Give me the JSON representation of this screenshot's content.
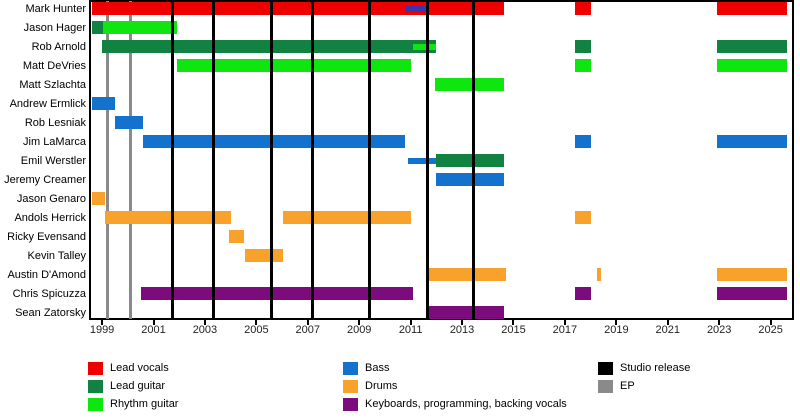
{
  "colors": {
    "lead_vocals": "#ee0000",
    "lead_guitar": "#128243",
    "rhythm_guitar": "#0fe50f",
    "bass": "#1272ce",
    "bass_dark_overlay": "#3b33b0",
    "drums": "#f9a22b",
    "keyboards": "#7c0b7c",
    "studio": "#000000",
    "ep": "#8a8a8a"
  },
  "chart_data": {
    "type": "timeline",
    "title": "",
    "x_axis": {
      "start": 1998.53,
      "end": 2025.87,
      "ticks": [
        1999,
        2001,
        2003,
        2005,
        2007,
        2009,
        2011,
        2013,
        2015,
        2017,
        2019,
        2021,
        2023,
        2025
      ]
    },
    "members": [
      {
        "name": "Mark Hunter",
        "segments": [
          {
            "role": "lead_vocals",
            "from": 1998.6,
            "to": 2014.65
          },
          {
            "role": "bass",
            "color_key": "bass_dark_overlay",
            "from": 2010.8,
            "to": 2011.55,
            "thin": true
          },
          {
            "role": "lead_vocals",
            "from": 2017.4,
            "to": 2018.0
          },
          {
            "role": "lead_vocals",
            "from": 2022.9,
            "to": 2025.65
          }
        ]
      },
      {
        "name": "Jason Hager",
        "segments": [
          {
            "role": "lead_guitar",
            "from": 1998.6,
            "to": 1999.05
          },
          {
            "role": "rhythm_guitar",
            "from": 1999.05,
            "to": 2001.9
          }
        ]
      },
      {
        "name": "Rob Arnold",
        "segments": [
          {
            "role": "lead_guitar",
            "from": 1999.0,
            "to": 2012.0
          },
          {
            "role": "rhythm_guitar",
            "from": 2011.1,
            "to": 2012.0,
            "thin": true
          },
          {
            "role": "lead_guitar",
            "from": 2017.4,
            "to": 2018.0
          },
          {
            "role": "lead_guitar",
            "from": 2022.9,
            "to": 2025.65
          }
        ]
      },
      {
        "name": "Matt DeVries",
        "segments": [
          {
            "role": "rhythm_guitar",
            "from": 2001.9,
            "to": 2011.0
          },
          {
            "role": "rhythm_guitar",
            "from": 2017.4,
            "to": 2018.0
          },
          {
            "role": "rhythm_guitar",
            "from": 2022.9,
            "to": 2025.65
          }
        ]
      },
      {
        "name": "Matt Szlachta",
        "segments": [
          {
            "role": "rhythm_guitar",
            "from": 2011.95,
            "to": 2014.65
          }
        ]
      },
      {
        "name": "Andrew Ermlick",
        "segments": [
          {
            "role": "bass",
            "from": 1998.6,
            "to": 1999.5
          }
        ]
      },
      {
        "name": "Rob Lesniak",
        "segments": [
          {
            "role": "bass",
            "from": 1999.5,
            "to": 2000.6
          }
        ]
      },
      {
        "name": "Jim LaMarca",
        "segments": [
          {
            "role": "bass",
            "from": 2000.6,
            "to": 2010.8
          },
          {
            "role": "bass",
            "from": 2017.4,
            "to": 2018.0
          },
          {
            "role": "bass",
            "from": 2022.9,
            "to": 2025.65
          }
        ]
      },
      {
        "name": "Emil Werstler",
        "segments": [
          {
            "role": "bass",
            "from": 2010.9,
            "to": 2012.0,
            "thin": true
          },
          {
            "role": "lead_guitar",
            "from": 2012.0,
            "to": 2014.65
          }
        ]
      },
      {
        "name": "Jeremy Creamer",
        "segments": [
          {
            "role": "bass",
            "from": 2012.0,
            "to": 2014.65
          }
        ]
      },
      {
        "name": "Jason Genaro",
        "segments": [
          {
            "role": "drums",
            "from": 1998.6,
            "to": 1999.1
          }
        ]
      },
      {
        "name": "Andols Herrick",
        "segments": [
          {
            "role": "drums",
            "from": 1999.1,
            "to": 2004.0
          },
          {
            "role": "drums",
            "from": 2006.05,
            "to": 2011.0
          },
          {
            "role": "drums",
            "from": 2017.4,
            "to": 2018.0
          }
        ]
      },
      {
        "name": "Ricky Evensand",
        "segments": [
          {
            "role": "drums",
            "from": 2003.95,
            "to": 2004.5
          }
        ]
      },
      {
        "name": "Kevin Talley",
        "segments": [
          {
            "role": "drums",
            "from": 2004.55,
            "to": 2006.05
          }
        ]
      },
      {
        "name": "Austin D'Amond",
        "segments": [
          {
            "role": "drums",
            "from": 2011.65,
            "to": 2014.7
          },
          {
            "role": "drums",
            "from": 2018.25,
            "to": 2018.4
          },
          {
            "role": "drums",
            "from": 2022.9,
            "to": 2025.65
          }
        ]
      },
      {
        "name": "Chris Spicuzza",
        "segments": [
          {
            "role": "keyboards",
            "from": 2000.5,
            "to": 2011.1
          },
          {
            "role": "keyboards",
            "from": 2017.4,
            "to": 2018.0
          },
          {
            "role": "keyboards",
            "from": 2022.9,
            "to": 2025.65
          }
        ]
      },
      {
        "name": "Sean Zatorsky",
        "segments": [
          {
            "role": "keyboards",
            "from": 2011.65,
            "to": 2014.65
          }
        ]
      }
    ],
    "releases": {
      "studio": [
        2001.75,
        2003.35,
        2005.6,
        2007.2,
        2009.4,
        2011.65,
        2013.45
      ],
      "ep": [
        1999.2,
        2000.1
      ]
    }
  },
  "legend": {
    "columns": [
      {
        "items": [
          {
            "label": "Lead vocals",
            "role": "lead_vocals"
          },
          {
            "label": "Lead guitar",
            "role": "lead_guitar"
          },
          {
            "label": "Rhythm guitar",
            "role": "rhythm_guitar"
          }
        ]
      },
      {
        "items": [
          {
            "label": "Bass",
            "role": "bass"
          },
          {
            "label": "Drums",
            "role": "drums"
          },
          {
            "label": "Keyboards, programming, backing vocals",
            "role": "keyboards"
          }
        ]
      },
      {
        "items": [
          {
            "label": "Studio release",
            "role": "studio"
          },
          {
            "label": "EP",
            "role": "ep"
          }
        ]
      }
    ]
  }
}
